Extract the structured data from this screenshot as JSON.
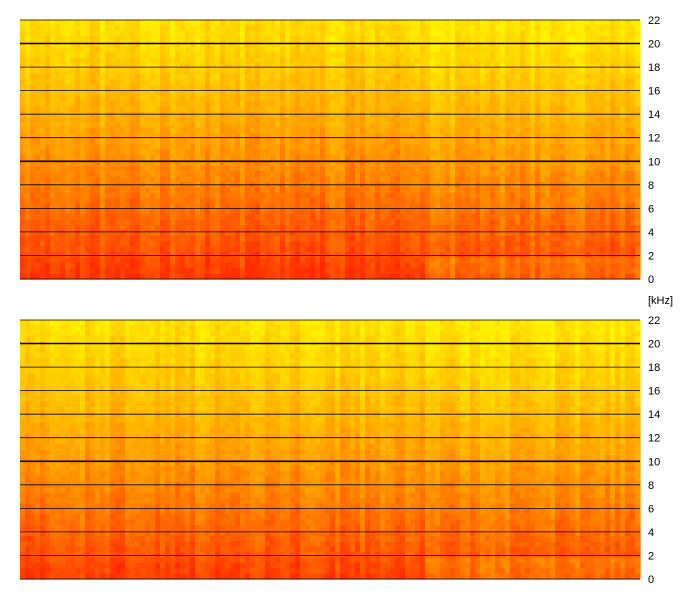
{
  "chart_data": [
    {
      "type": "heatmap",
      "channel": "top",
      "yunit": "",
      "ylim": [
        0,
        22
      ],
      "yticks": [
        0,
        2,
        4,
        6,
        8,
        10,
        12,
        14,
        16,
        18,
        20,
        22
      ],
      "emphasized_gridlines": [
        10,
        20
      ],
      "colors": {
        "low": "#fff200",
        "mid": "#ff9a00",
        "high": "#ff2a00"
      },
      "energy_profile": [
        0.95,
        0.85,
        0.78,
        0.7,
        0.62,
        0.54,
        0.46,
        0.38,
        0.3,
        0.22,
        0.15,
        0.1
      ]
    },
    {
      "type": "heatmap",
      "channel": "bottom",
      "yunit": "[kHz]",
      "ylim": [
        0,
        22
      ],
      "yticks": [
        0,
        2,
        4,
        6,
        8,
        10,
        12,
        14,
        16,
        18,
        20,
        22
      ],
      "emphasized_gridlines": [
        10,
        20
      ],
      "colors": {
        "low": "#fff200",
        "mid": "#ff9a00",
        "high": "#ff2a00"
      },
      "energy_profile": [
        0.92,
        0.82,
        0.74,
        0.66,
        0.58,
        0.5,
        0.42,
        0.34,
        0.27,
        0.2,
        0.14,
        0.09
      ]
    }
  ]
}
